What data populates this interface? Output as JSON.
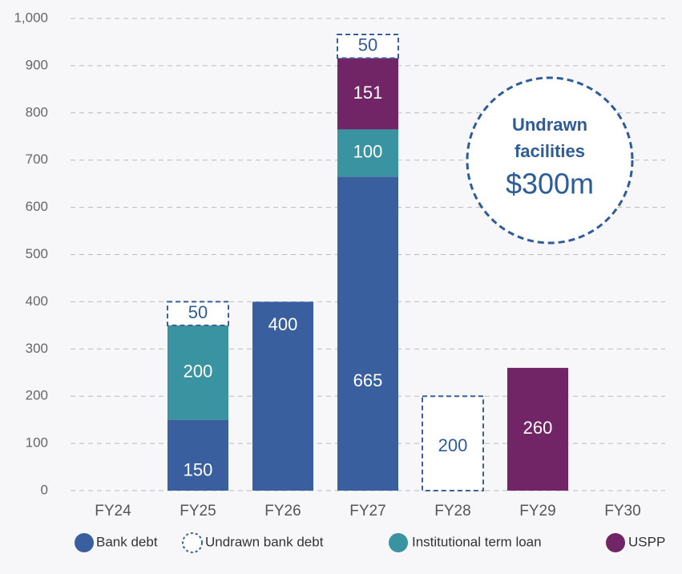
{
  "chart_data": {
    "type": "stacked_bar",
    "categories": [
      "FY24",
      "FY25",
      "FY26",
      "FY27",
      "FY28",
      "FY29",
      "FY30"
    ],
    "series": [
      {
        "name": "Bank debt",
        "color": "#3a5f9f",
        "values": [
          null,
          150,
          400,
          665,
          null,
          null,
          null
        ]
      },
      {
        "name": "Undrawn bank debt",
        "color": "#ffffff",
        "values": [
          null,
          50,
          null,
          50,
          200,
          null,
          null
        ]
      },
      {
        "name": "Institutional term loan",
        "color": "#3a93a0",
        "values": [
          null,
          200,
          null,
          100,
          null,
          null,
          null
        ]
      },
      {
        "name": "USPP",
        "color": "#722566",
        "values": [
          null,
          null,
          null,
          151,
          null,
          260,
          null
        ]
      }
    ],
    "ylim": [
      0,
      1000
    ],
    "yticks": [
      0,
      100,
      200,
      300,
      400,
      500,
      600,
      700,
      800,
      900,
      {
        "value": 1000,
        "label": "1,000"
      }
    ],
    "grid": true,
    "legend": "bottom",
    "annotation_lines": [
      "Undrawn",
      "facilities",
      "$300m"
    ]
  }
}
